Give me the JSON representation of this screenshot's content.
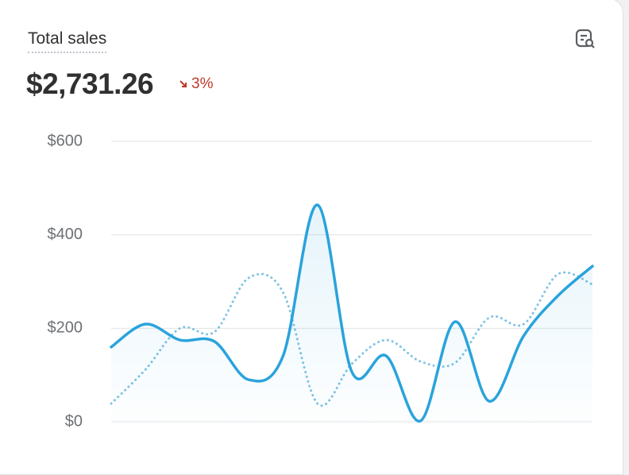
{
  "chart_data": {
    "type": "line",
    "title": "Total sales",
    "total": "$2,731.26",
    "change": "3%",
    "categories": [
      null,
      null,
      null,
      null,
      null,
      null,
      null,
      null,
      null,
      null,
      null,
      null,
      null,
      null,
      null
    ],
    "series": [
      {
        "color": "#2aa3dc",
        "style": "solid",
        "values": [
          160,
          209,
          175,
          172,
          90,
          141,
          464,
          107,
          141,
          2,
          214,
          44,
          184,
          270,
          333
        ]
      },
      {
        "color": "#7fc3e4",
        "style": "dotted",
        "values": [
          39,
          112,
          200,
          192,
          308,
          277,
          39,
          124,
          175,
          129,
          126,
          223,
          209,
          316,
          294
        ]
      }
    ],
    "ylim": [
      0,
      600
    ],
    "yticks": [
      {
        "value": 0,
        "label": "$0"
      },
      {
        "value": 200,
        "label": "$200"
      },
      {
        "value": 400,
        "label": "$400"
      },
      {
        "value": 600,
        "label": "$600"
      }
    ],
    "grid": true
  }
}
